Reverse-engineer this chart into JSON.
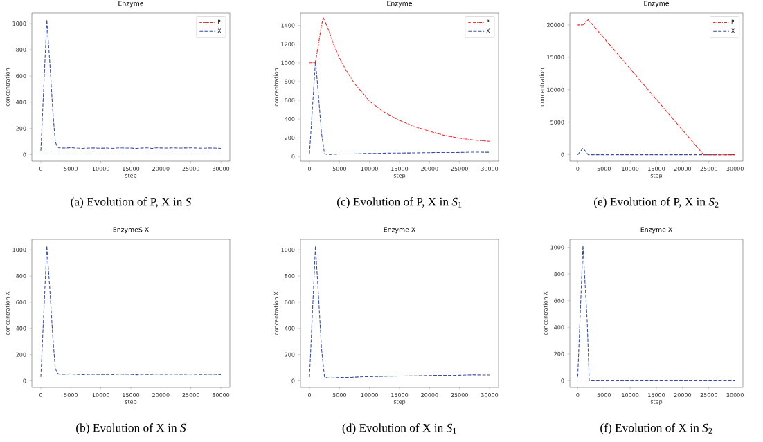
{
  "chart_data": [
    {
      "type": "line",
      "title": "Enzyme",
      "xlabel": "step",
      "ylabel": "concentration",
      "annotations": [
        "(a) Evolution of P, X in *S*"
      ],
      "xlim": [
        -1500,
        31500
      ],
      "ylim": [
        -50,
        1080
      ],
      "xticks": [
        0,
        5000,
        10000,
        15000,
        20000,
        25000,
        30000
      ],
      "yticks": [
        0,
        200,
        400,
        600,
        800,
        1000
      ],
      "legend": "top right",
      "series": [
        {
          "name": "P",
          "color": "#e8262a",
          "line_style": "dashdot",
          "x": [
            0,
            30000
          ],
          "values": [
            5,
            5
          ]
        },
        {
          "name": "X",
          "color": "#3a4e9e",
          "line_style": "dashed",
          "x": [
            0,
            500,
            1000,
            1100,
            1500,
            2000,
            2400,
            2700,
            3000,
            4000,
            5000,
            6000,
            7000,
            8000,
            9000,
            10000,
            11000,
            12000,
            13000,
            14000,
            15000,
            16000,
            17000,
            18000,
            18500,
            19000,
            20000,
            21000,
            22000,
            23000,
            24000,
            25000,
            26000,
            27000,
            28000,
            29000,
            30000
          ],
          "values": [
            30,
            530,
            1030,
            960,
            700,
            330,
            100,
            62,
            52,
            50,
            53,
            50,
            48,
            50,
            51,
            49,
            50,
            48,
            52,
            50,
            50,
            47,
            51,
            52,
            46,
            52,
            51,
            50,
            52,
            50,
            51,
            52,
            50,
            49,
            51,
            50,
            48
          ]
        }
      ]
    },
    {
      "type": "line",
      "title": "Enzyme",
      "xlabel": "step",
      "ylabel": "concentration",
      "annotations": [
        "(c) Evolution of P, X in *S*$_{1}$"
      ],
      "xlim": [
        -1500,
        31500
      ],
      "ylim": [
        -50,
        1530
      ],
      "xticks": [
        0,
        5000,
        10000,
        15000,
        20000,
        25000,
        30000
      ],
      "yticks": [
        0,
        200,
        400,
        600,
        800,
        1000,
        1200,
        1400
      ],
      "legend": "top right",
      "series": [
        {
          "name": "P",
          "color": "#e8262a",
          "line_style": "dashdot",
          "x": [
            0,
            900,
            1000,
            1500,
            2000,
            2300,
            3000,
            4000,
            5000,
            6000,
            7500,
            10000,
            12500,
            15000,
            17500,
            20000,
            22500,
            25000,
            27500,
            30000
          ],
          "values": [
            1000,
            1000,
            1010,
            1200,
            1400,
            1480,
            1380,
            1200,
            1050,
            930,
            780,
            590,
            470,
            385,
            320,
            270,
            225,
            195,
            175,
            162
          ]
        },
        {
          "name": "X",
          "color": "#3a4e9e",
          "line_style": "dashed",
          "x": [
            0,
            1000,
            1100,
            1500,
            2000,
            2500,
            3000,
            4000,
            5000,
            7000,
            9000,
            11000,
            13000,
            15000,
            17000,
            19000,
            21000,
            23000,
            25000,
            27000,
            30000
          ],
          "values": [
            30,
            1020,
            950,
            650,
            250,
            30,
            22,
            23,
            27,
            27,
            32,
            33,
            36,
            37,
            38,
            40,
            42,
            42,
            43,
            46,
            45
          ]
        }
      ]
    },
    {
      "type": "line",
      "title": "Enzyme",
      "xlabel": "step",
      "ylabel": "concentration",
      "annotations": [
        "(e) Evolution of P, X in *S*$_{2}$"
      ],
      "xlim": [
        -1500,
        31500
      ],
      "ylim": [
        -1000,
        21800
      ],
      "xticks": [
        0,
        5000,
        10000,
        15000,
        20000,
        25000,
        30000
      ],
      "yticks": [
        0,
        5000,
        10000,
        15000,
        20000
      ],
      "legend": "top right",
      "series": [
        {
          "name": "P",
          "color": "#e8262a",
          "line_style": "dashdot",
          "x": [
            0,
            1000,
            2000,
            24000,
            30000
          ],
          "values": [
            20000,
            20000,
            20800,
            0,
            0
          ]
        },
        {
          "name": "X",
          "color": "#3a4e9e",
          "line_style": "dashed",
          "x": [
            0,
            1000,
            2000,
            30000
          ],
          "values": [
            0,
            1000,
            0,
            0
          ]
        }
      ]
    },
    {
      "type": "line",
      "title": "EnzymeS X",
      "xlabel": "step",
      "ylabel": "concentration X",
      "annotations": [
        "(b) Evolution of X in *S*"
      ],
      "xlim": [
        -1500,
        31500
      ],
      "ylim": [
        -50,
        1080
      ],
      "xticks": [
        0,
        5000,
        10000,
        15000,
        20000,
        25000,
        30000
      ],
      "yticks": [
        0,
        200,
        400,
        600,
        800,
        1000
      ],
      "series": [
        {
          "color": "#3a4e9e",
          "line_style": "dashed",
          "x": [
            0,
            500,
            1000,
            1100,
            1500,
            2000,
            2400,
            2700,
            3000,
            4000,
            5000,
            6000,
            7000,
            8000,
            9000,
            10000,
            11000,
            12000,
            13000,
            14000,
            15000,
            16000,
            17000,
            18000,
            19000,
            20000,
            21000,
            22000,
            23000,
            24000,
            25000,
            26000,
            27000,
            28000,
            29000,
            30000
          ],
          "values": [
            30,
            530,
            1030,
            960,
            700,
            330,
            100,
            62,
            52,
            50,
            54,
            50,
            48,
            50,
            51,
            49,
            50,
            48,
            52,
            50,
            50,
            47,
            51,
            48,
            52,
            51,
            50,
            52,
            50,
            51,
            52,
            50,
            49,
            51,
            50,
            48
          ]
        }
      ]
    },
    {
      "type": "line",
      "title": "Enzyme X",
      "xlabel": "step",
      "ylabel": "concentration X",
      "annotations": [
        "(d) Evolution of X in *S*$_{1}$"
      ],
      "xlim": [
        -1500,
        31500
      ],
      "ylim": [
        -50,
        1080
      ],
      "xticks": [
        0,
        5000,
        10000,
        15000,
        20000,
        25000,
        30000
      ],
      "yticks": [
        0,
        200,
        400,
        600,
        800,
        1000
      ],
      "series": [
        {
          "color": "#3a4e9e",
          "line_style": "dashed",
          "x": [
            0,
            1000,
            1100,
            1500,
            2000,
            2500,
            3000,
            4000,
            5000,
            7000,
            9000,
            11000,
            13000,
            15000,
            17000,
            19000,
            21000,
            23000,
            25000,
            27000,
            30000
          ],
          "values": [
            30,
            1030,
            950,
            650,
            250,
            30,
            22,
            23,
            27,
            27,
            32,
            33,
            36,
            37,
            38,
            40,
            42,
            42,
            43,
            46,
            45
          ]
        }
      ]
    },
    {
      "type": "line",
      "title": "Enzyme X",
      "xlabel": "step",
      "ylabel": "concentration X",
      "annotations": [
        "(f) Evolution of X in *S*$_{2}$"
      ],
      "xlim": [
        -1500,
        31500
      ],
      "ylim": [
        -50,
        1060
      ],
      "xticks": [
        0,
        5000,
        10000,
        15000,
        20000,
        25000,
        30000
      ],
      "yticks": [
        0,
        200,
        400,
        600,
        800,
        1000
      ],
      "series": [
        {
          "color": "#3a4e9e",
          "line_style": "dashed",
          "x": [
            0,
            1000,
            1100,
            1800,
            2200,
            30000
          ],
          "values": [
            30,
            1015,
            940,
            450,
            0,
            0
          ]
        }
      ]
    }
  ]
}
